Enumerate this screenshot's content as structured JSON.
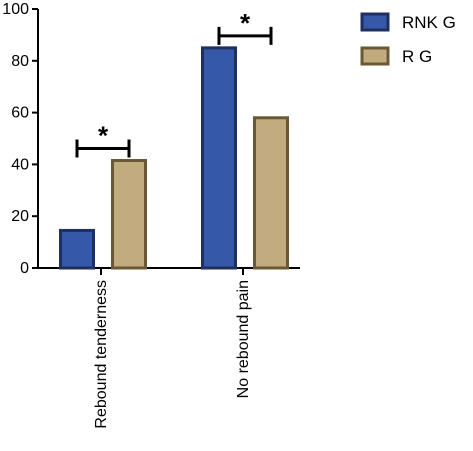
{
  "chart_data": {
    "type": "bar",
    "categories": [
      "Rebound tenderness",
      "No rebound pain"
    ],
    "series": [
      {
        "name": "RNK G",
        "values": [
          14.5,
          85
        ],
        "color": "#3559a8",
        "stroke": "#1f2f5e"
      },
      {
        "name": "R G",
        "values": [
          41.5,
          58
        ],
        "color": "#c2ab7e",
        "stroke": "#6b5836"
      }
    ],
    "ylim": [
      0,
      100
    ],
    "yticks": [
      0,
      20,
      40,
      60,
      80,
      100
    ],
    "grid": false,
    "legend": "top-right",
    "annotations": [
      {
        "category": "Rebound tenderness",
        "label": "*"
      },
      {
        "category": "No rebound pain",
        "label": "*"
      }
    ],
    "title": "",
    "xlabel": "",
    "ylabel": ""
  }
}
